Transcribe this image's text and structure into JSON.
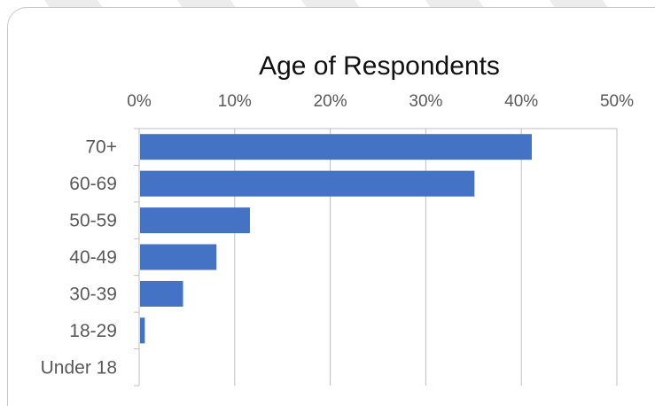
{
  "chart_data": {
    "type": "bar",
    "orientation": "horizontal",
    "title": "Age of Respondents",
    "categories": [
      "70+",
      "60-69",
      "50-59",
      "40-49",
      "30-39",
      "18-29",
      "Under 18"
    ],
    "values": [
      0.41,
      0.35,
      0.115,
      0.08,
      0.045,
      0.005,
      0.0
    ],
    "xlim": [
      0,
      0.5
    ],
    "x_ticks": [
      0,
      0.1,
      0.2,
      0.3,
      0.4,
      0.5
    ],
    "x_tick_labels": [
      "0%",
      "10%",
      "20%",
      "30%",
      "40%",
      "50%"
    ],
    "x_axis_position": "top",
    "xlabel": "",
    "ylabel": "",
    "grid": true,
    "legend": false,
    "bar_color": "#4472c4",
    "gridline_color": "#bfbfbf"
  }
}
